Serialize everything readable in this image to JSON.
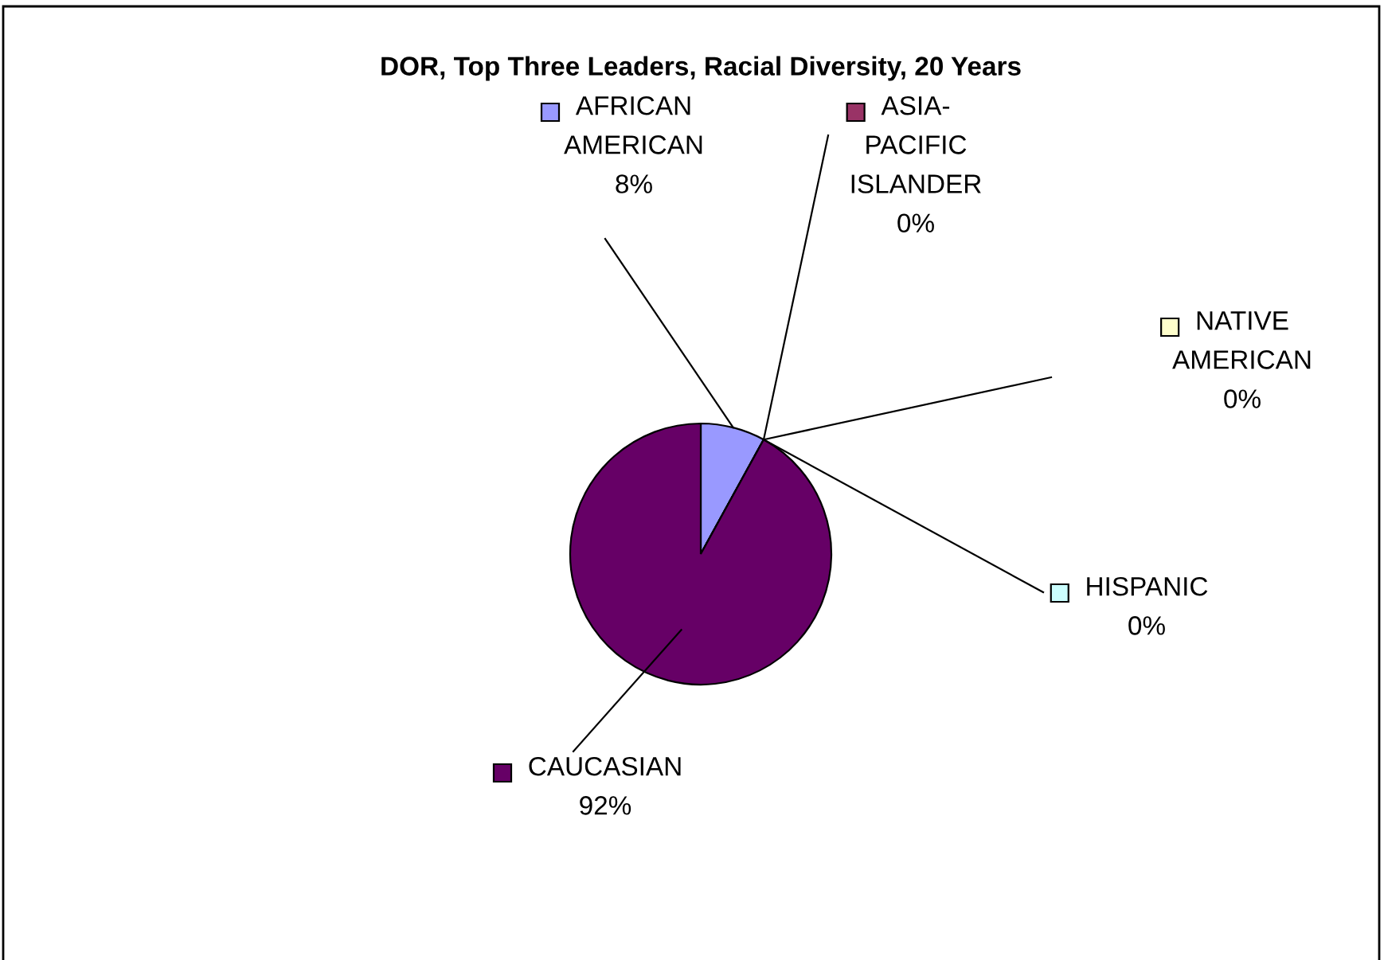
{
  "chart_data": {
    "type": "pie",
    "title": "DOR, Top Three Leaders, Racial Diversity, 20 Years",
    "categories": [
      "AFRICAN AMERICAN",
      "ASIA-PACIFIC ISLANDER",
      "NATIVE AMERICAN",
      "HISPANIC",
      "CAUCASIAN"
    ],
    "values": [
      8,
      0,
      0,
      0,
      92
    ],
    "value_labels": [
      "8%",
      "0%",
      "0%",
      "0%",
      "92%"
    ],
    "colors": [
      "#9999ff",
      "#993366",
      "#ffffcc",
      "#ccffff",
      "#660066"
    ],
    "legend": "right"
  }
}
